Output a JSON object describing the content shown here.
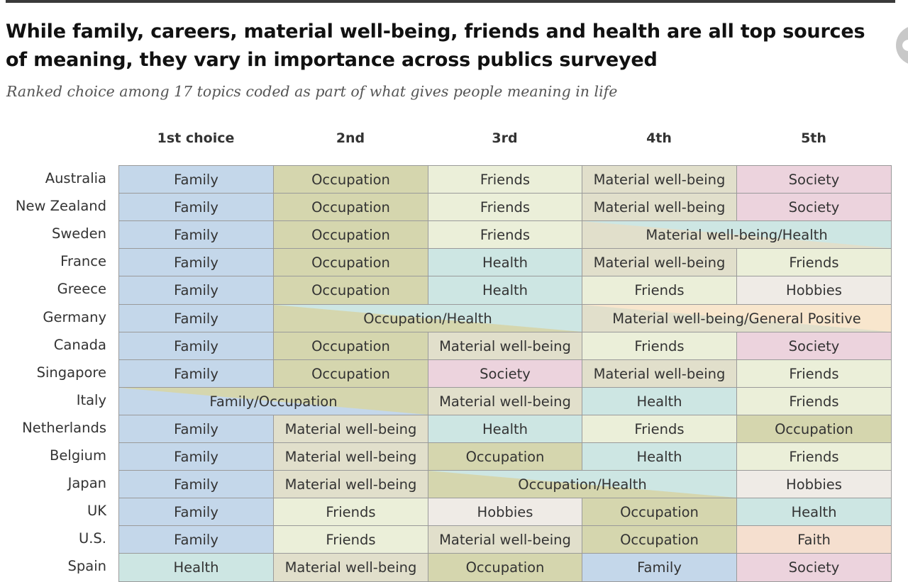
{
  "title": "While family, careers, material well-being, friends and health are all top sources of meaning, they vary in importance across publics surveyed",
  "subtitle": "Ranked choice among 17 topics coded as part of what gives people meaning in life",
  "colors": {
    "Family": "#c4d7ea",
    "Occupation": "#d5d6ae",
    "Friends": "#ebefd9",
    "Material well-being": "#e1dfcb",
    "Society": "#ecd3dd",
    "Health": "#cde6e3",
    "Hobbies": "#efebe6",
    "Faith": "#f5dfcf",
    "General Positive": "#f8e6cd"
  },
  "chart_data": {
    "type": "table",
    "title": "While family, careers, material well-being, friends and health are all top sources of meaning, they vary in importance across publics surveyed",
    "subtitle": "Ranked choice among 17 topics coded as part of what gives people meaning in life",
    "columns": [
      "1st choice",
      "2nd",
      "3rd",
      "4th",
      "5th"
    ],
    "rows": [
      {
        "country": "Australia",
        "cells": [
          {
            "label": "Family",
            "span": 1,
            "topics": [
              "Family"
            ]
          },
          {
            "label": "Occupation",
            "span": 1,
            "topics": [
              "Occupation"
            ]
          },
          {
            "label": "Friends",
            "span": 1,
            "topics": [
              "Friends"
            ]
          },
          {
            "label": "Material well-being",
            "span": 1,
            "topics": [
              "Material well-being"
            ]
          },
          {
            "label": "Society",
            "span": 1,
            "topics": [
              "Society"
            ]
          }
        ]
      },
      {
        "country": "New Zealand",
        "cells": [
          {
            "label": "Family",
            "span": 1,
            "topics": [
              "Family"
            ]
          },
          {
            "label": "Occupation",
            "span": 1,
            "topics": [
              "Occupation"
            ]
          },
          {
            "label": "Friends",
            "span": 1,
            "topics": [
              "Friends"
            ]
          },
          {
            "label": "Material well-being",
            "span": 1,
            "topics": [
              "Material well-being"
            ]
          },
          {
            "label": "Society",
            "span": 1,
            "topics": [
              "Society"
            ]
          }
        ]
      },
      {
        "country": "Sweden",
        "cells": [
          {
            "label": "Family",
            "span": 1,
            "topics": [
              "Family"
            ]
          },
          {
            "label": "Occupation",
            "span": 1,
            "topics": [
              "Occupation"
            ]
          },
          {
            "label": "Friends",
            "span": 1,
            "topics": [
              "Friends"
            ]
          },
          {
            "label": "Material well-being/Health",
            "span": 2,
            "topics": [
              "Material well-being",
              "Health"
            ]
          }
        ]
      },
      {
        "country": "France",
        "cells": [
          {
            "label": "Family",
            "span": 1,
            "topics": [
              "Family"
            ]
          },
          {
            "label": "Occupation",
            "span": 1,
            "topics": [
              "Occupation"
            ]
          },
          {
            "label": "Health",
            "span": 1,
            "topics": [
              "Health"
            ]
          },
          {
            "label": "Material well-being",
            "span": 1,
            "topics": [
              "Material well-being"
            ]
          },
          {
            "label": "Friends",
            "span": 1,
            "topics": [
              "Friends"
            ]
          }
        ]
      },
      {
        "country": "Greece",
        "cells": [
          {
            "label": "Family",
            "span": 1,
            "topics": [
              "Family"
            ]
          },
          {
            "label": "Occupation",
            "span": 1,
            "topics": [
              "Occupation"
            ]
          },
          {
            "label": "Health",
            "span": 1,
            "topics": [
              "Health"
            ]
          },
          {
            "label": "Friends",
            "span": 1,
            "topics": [
              "Friends"
            ]
          },
          {
            "label": "Hobbies",
            "span": 1,
            "topics": [
              "Hobbies"
            ]
          }
        ]
      },
      {
        "country": "Germany",
        "cells": [
          {
            "label": "Family",
            "span": 1,
            "topics": [
              "Family"
            ]
          },
          {
            "label": "Occupation/Health",
            "span": 2,
            "topics": [
              "Occupation",
              "Health"
            ]
          },
          {
            "label": "Material well-being/General Positive",
            "span": 2,
            "topics": [
              "Material well-being",
              "General Positive"
            ]
          }
        ]
      },
      {
        "country": "Canada",
        "cells": [
          {
            "label": "Family",
            "span": 1,
            "topics": [
              "Family"
            ]
          },
          {
            "label": "Occupation",
            "span": 1,
            "topics": [
              "Occupation"
            ]
          },
          {
            "label": "Material well-being",
            "span": 1,
            "topics": [
              "Material well-being"
            ]
          },
          {
            "label": "Friends",
            "span": 1,
            "topics": [
              "Friends"
            ]
          },
          {
            "label": "Society",
            "span": 1,
            "topics": [
              "Society"
            ]
          }
        ]
      },
      {
        "country": "Singapore",
        "cells": [
          {
            "label": "Family",
            "span": 1,
            "topics": [
              "Family"
            ]
          },
          {
            "label": "Occupation",
            "span": 1,
            "topics": [
              "Occupation"
            ]
          },
          {
            "label": "Society",
            "span": 1,
            "topics": [
              "Society"
            ]
          },
          {
            "label": "Material well-being",
            "span": 1,
            "topics": [
              "Material well-being"
            ]
          },
          {
            "label": "Friends",
            "span": 1,
            "topics": [
              "Friends"
            ]
          }
        ]
      },
      {
        "country": "Italy",
        "cells": [
          {
            "label": "Family/Occupation",
            "span": 2,
            "topics": [
              "Family",
              "Occupation"
            ]
          },
          {
            "label": "Material well-being",
            "span": 1,
            "topics": [
              "Material well-being"
            ]
          },
          {
            "label": "Health",
            "span": 1,
            "topics": [
              "Health"
            ]
          },
          {
            "label": "Friends",
            "span": 1,
            "topics": [
              "Friends"
            ]
          }
        ]
      },
      {
        "country": "Netherlands",
        "cells": [
          {
            "label": "Family",
            "span": 1,
            "topics": [
              "Family"
            ]
          },
          {
            "label": "Material well-being",
            "span": 1,
            "topics": [
              "Material well-being"
            ]
          },
          {
            "label": "Health",
            "span": 1,
            "topics": [
              "Health"
            ]
          },
          {
            "label": "Friends",
            "span": 1,
            "topics": [
              "Friends"
            ]
          },
          {
            "label": "Occupation",
            "span": 1,
            "topics": [
              "Occupation"
            ]
          }
        ]
      },
      {
        "country": "Belgium",
        "cells": [
          {
            "label": "Family",
            "span": 1,
            "topics": [
              "Family"
            ]
          },
          {
            "label": "Material well-being",
            "span": 1,
            "topics": [
              "Material well-being"
            ]
          },
          {
            "label": "Occupation",
            "span": 1,
            "topics": [
              "Occupation"
            ]
          },
          {
            "label": "Health",
            "span": 1,
            "topics": [
              "Health"
            ]
          },
          {
            "label": "Friends",
            "span": 1,
            "topics": [
              "Friends"
            ]
          }
        ]
      },
      {
        "country": "Japan",
        "cells": [
          {
            "label": "Family",
            "span": 1,
            "topics": [
              "Family"
            ]
          },
          {
            "label": "Material well-being",
            "span": 1,
            "topics": [
              "Material well-being"
            ]
          },
          {
            "label": "Occupation/Health",
            "span": 2,
            "topics": [
              "Occupation",
              "Health"
            ]
          },
          {
            "label": "Hobbies",
            "span": 1,
            "topics": [
              "Hobbies"
            ]
          }
        ]
      },
      {
        "country": "UK",
        "cells": [
          {
            "label": "Family",
            "span": 1,
            "topics": [
              "Family"
            ]
          },
          {
            "label": "Friends",
            "span": 1,
            "topics": [
              "Friends"
            ]
          },
          {
            "label": "Hobbies",
            "span": 1,
            "topics": [
              "Hobbies"
            ]
          },
          {
            "label": "Occupation",
            "span": 1,
            "topics": [
              "Occupation"
            ]
          },
          {
            "label": "Health",
            "span": 1,
            "topics": [
              "Health"
            ]
          }
        ]
      },
      {
        "country": "U.S.",
        "cells": [
          {
            "label": "Family",
            "span": 1,
            "topics": [
              "Family"
            ]
          },
          {
            "label": "Friends",
            "span": 1,
            "topics": [
              "Friends"
            ]
          },
          {
            "label": "Material well-being",
            "span": 1,
            "topics": [
              "Material well-being"
            ]
          },
          {
            "label": "Occupation",
            "span": 1,
            "topics": [
              "Occupation"
            ]
          },
          {
            "label": "Faith",
            "span": 1,
            "topics": [
              "Faith"
            ]
          }
        ]
      },
      {
        "country": "Spain",
        "cells": [
          {
            "label": "Health",
            "span": 1,
            "topics": [
              "Health"
            ]
          },
          {
            "label": "Material well-being",
            "span": 1,
            "topics": [
              "Material well-being"
            ]
          },
          {
            "label": "Occupation",
            "span": 1,
            "topics": [
              "Occupation"
            ]
          },
          {
            "label": "Family",
            "span": 1,
            "topics": [
              "Family"
            ]
          },
          {
            "label": "Society",
            "span": 1,
            "topics": [
              "Society"
            ]
          }
        ]
      }
    ]
  }
}
